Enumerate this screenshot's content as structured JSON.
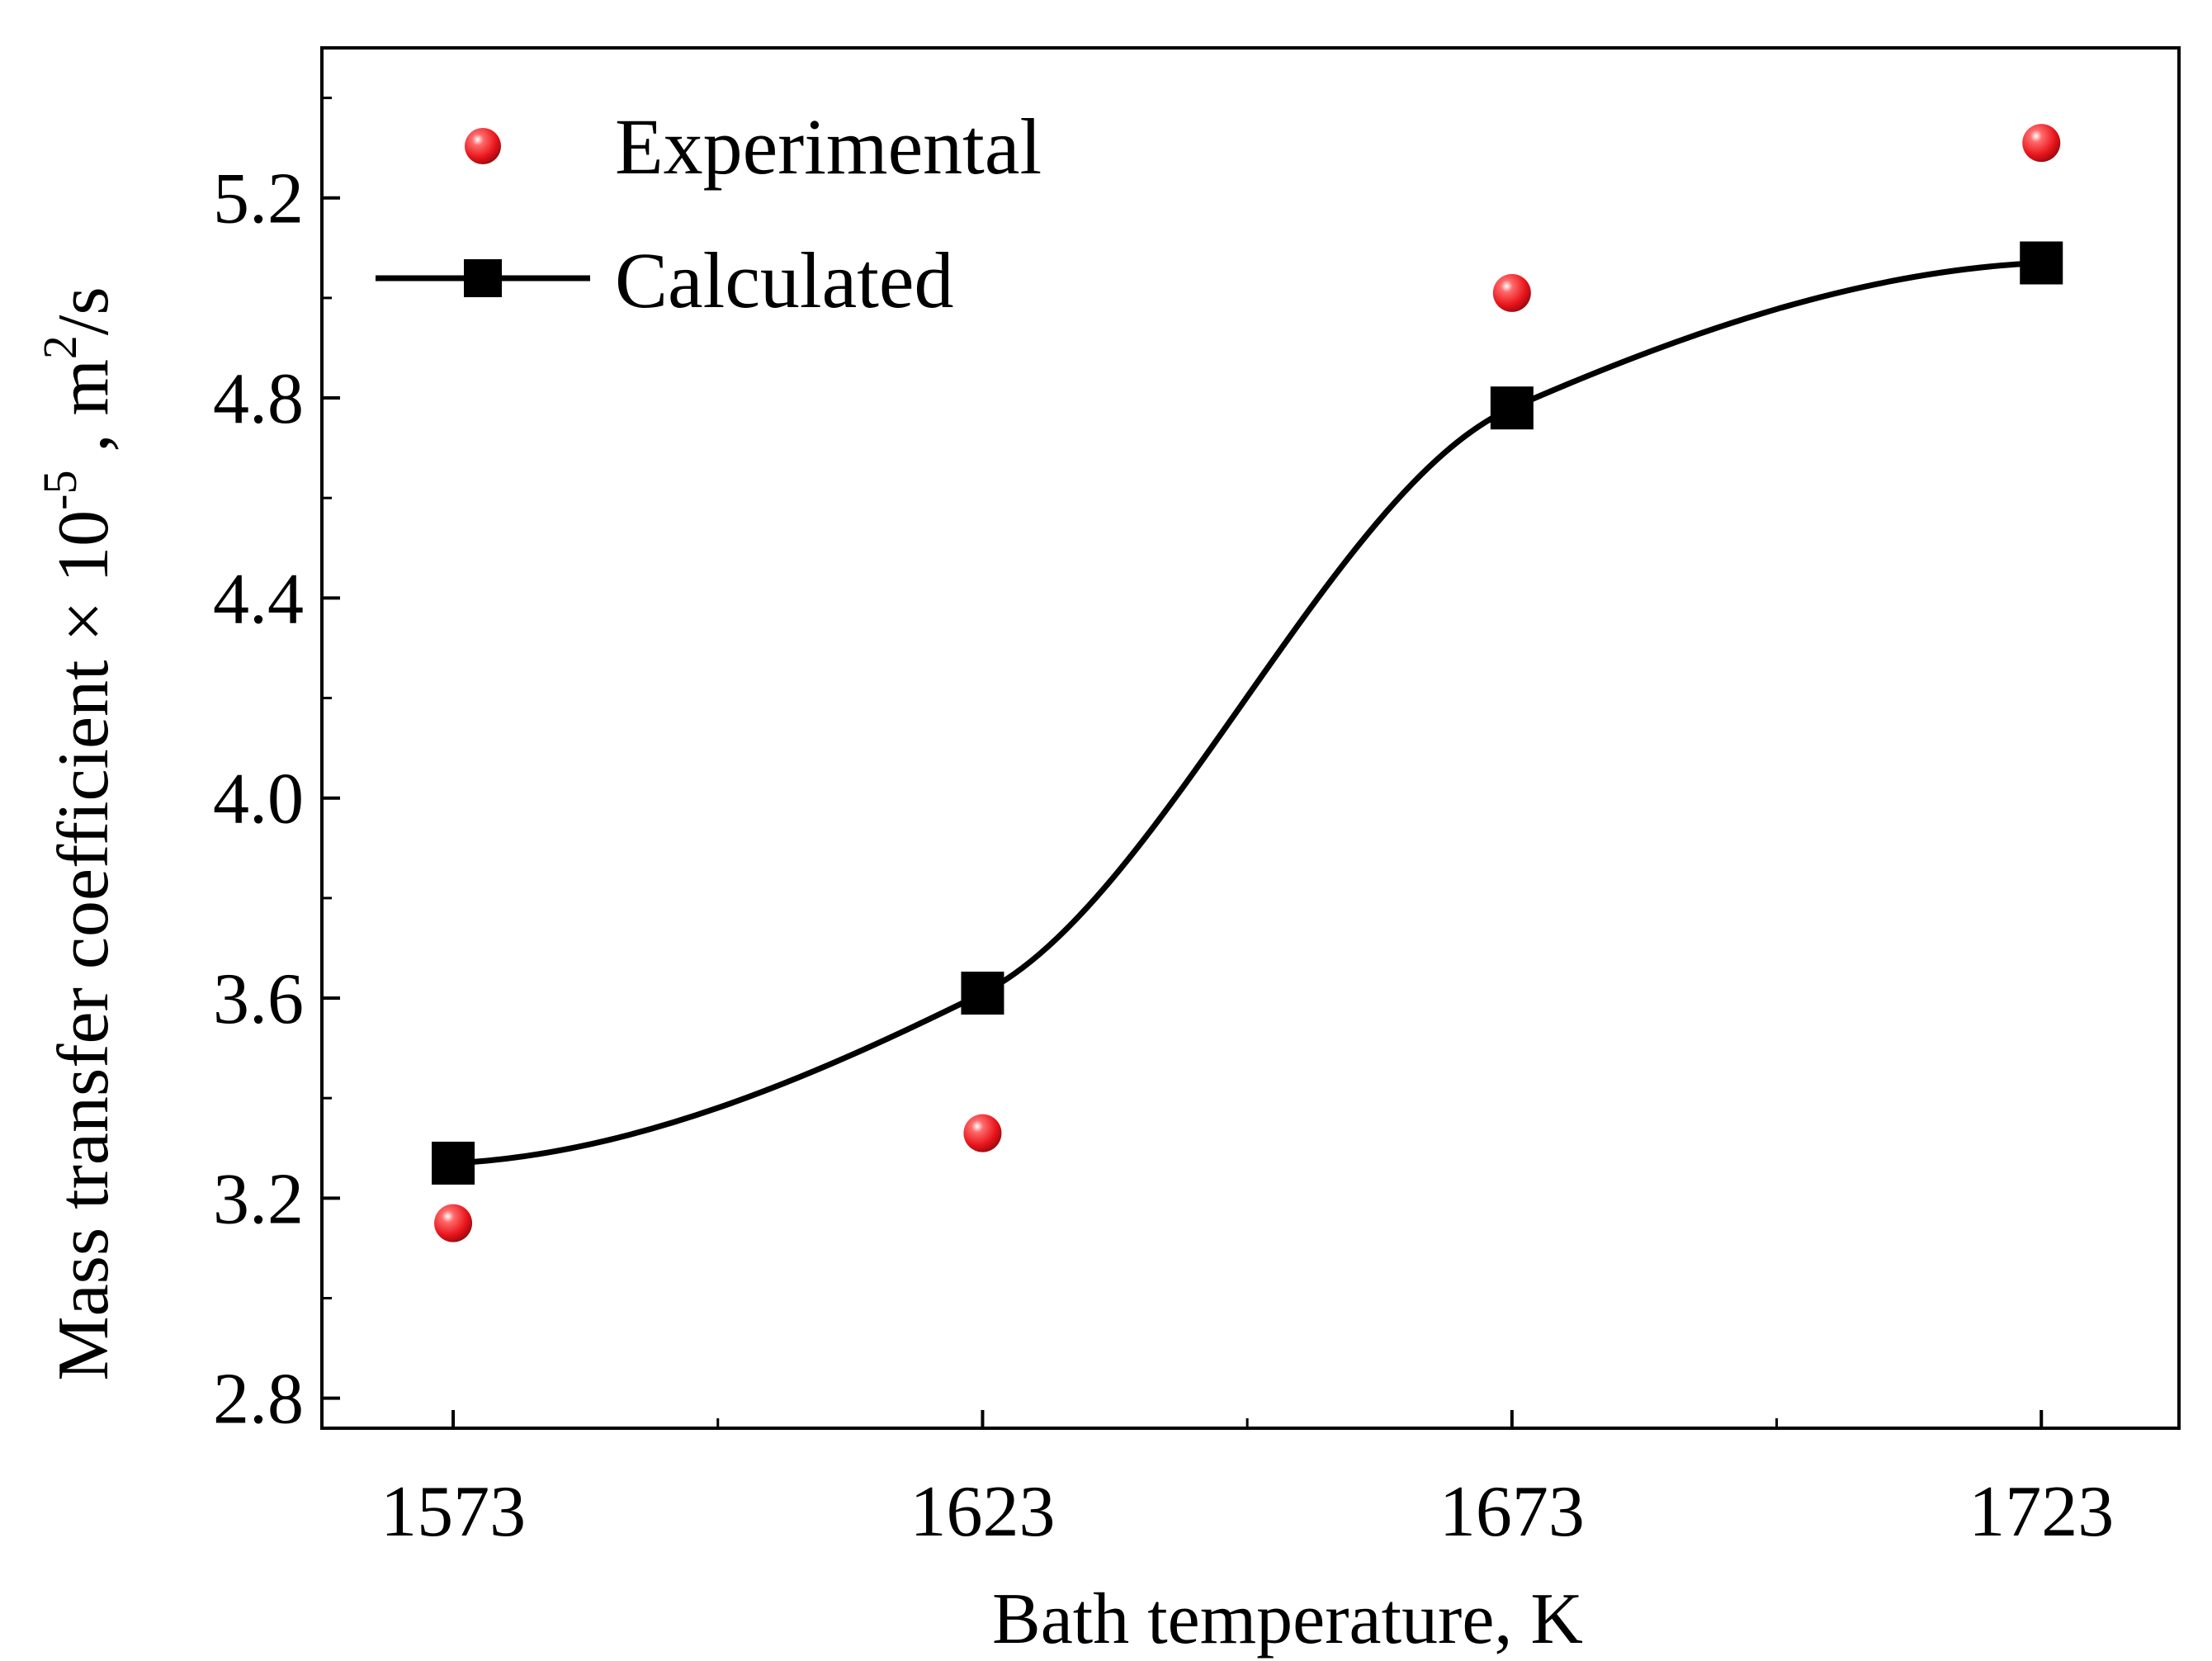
{
  "chart_data": {
    "type": "scatter",
    "title": "",
    "xlabel": "Bath temperature, K",
    "ylabel": {
      "main": "Mass transfer coefficient × 10",
      "exp": "-5",
      "unit": " , m",
      "unit_sup": "2",
      "unit_tail": "/s"
    },
    "x_ticks": [
      1573,
      1623,
      1673,
      1723
    ],
    "x_tick_labels": [
      "1573",
      "1623",
      "1673",
      "1723"
    ],
    "y_ticks": [
      2.8,
      3.2,
      3.6,
      4.0,
      4.4,
      4.8,
      5.2
    ],
    "y_tick_labels": [
      "2.8",
      "3.2",
      "3.6",
      "4.0",
      "4.4",
      "4.8",
      "5.2"
    ],
    "xlim": [
      1560.6,
      1736
    ],
    "ylim": [
      2.74,
      5.5
    ],
    "grid": false,
    "legend_position": "top-left",
    "series": [
      {
        "name": "Experimental",
        "style": "points",
        "marker": "sphere",
        "color": "#e8141b",
        "x": [
          1573,
          1623,
          1673,
          1723
        ],
        "y": [
          3.15,
          3.33,
          5.01,
          5.31
        ]
      },
      {
        "name": "Calculated",
        "style": "line+markers",
        "marker": "square",
        "color": "#000000",
        "x": [
          1573,
          1623,
          1673,
          1723
        ],
        "y": [
          3.27,
          3.61,
          4.78,
          5.07
        ]
      }
    ]
  }
}
